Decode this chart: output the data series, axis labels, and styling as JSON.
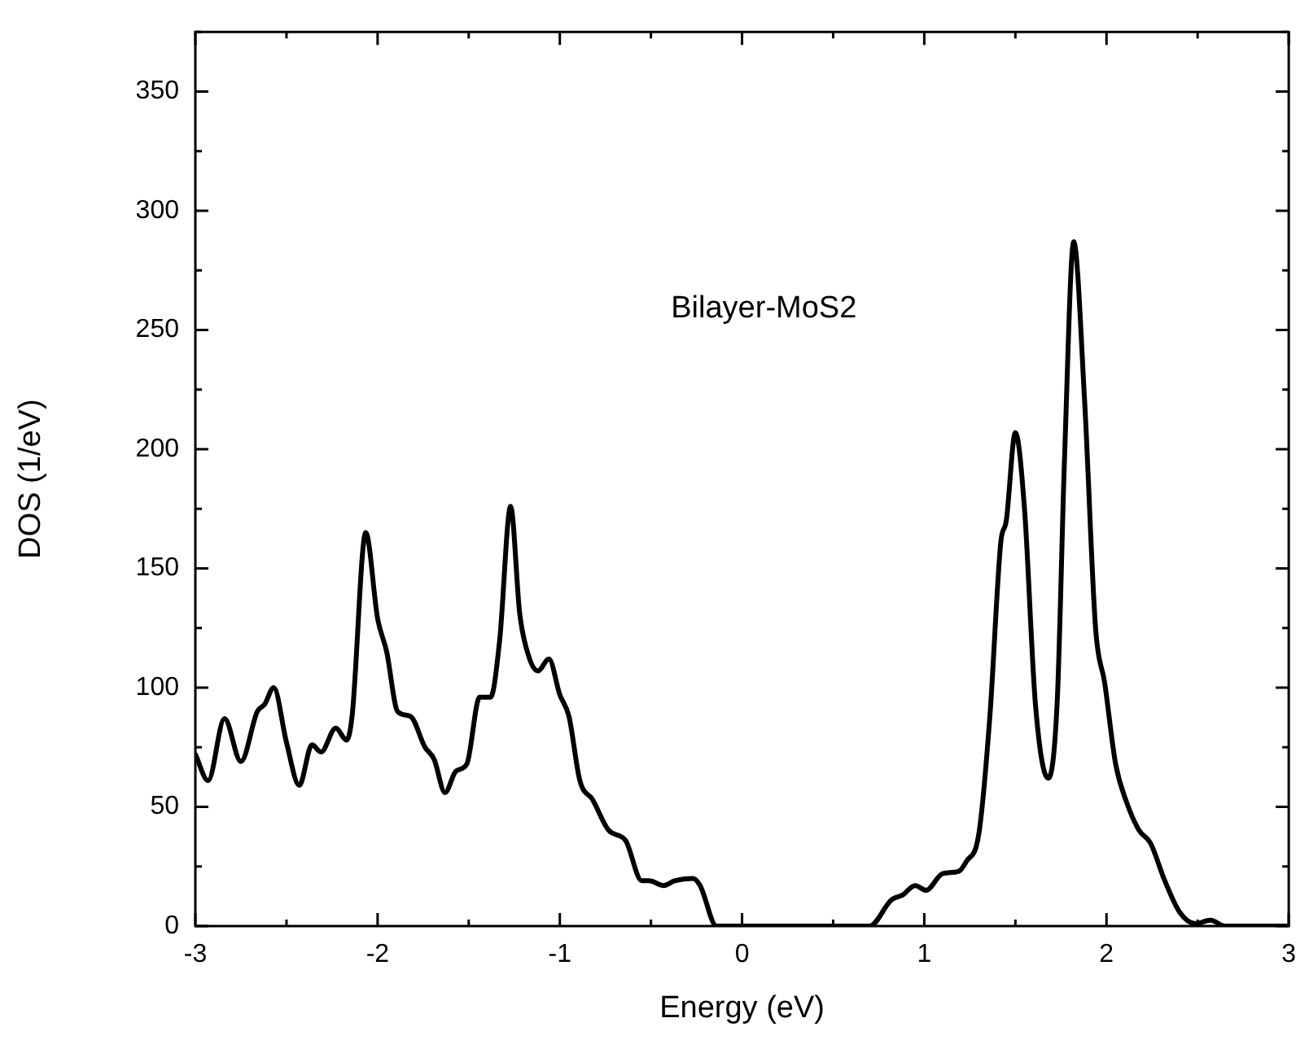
{
  "chart_data": {
    "type": "line",
    "xlabel": "Energy (eV)",
    "ylabel": "DOS (1/eV)",
    "annotations": [
      "Bilayer-MoS2"
    ],
    "xlim": [
      -3,
      3
    ],
    "xticks": [
      -3,
      -2,
      -1,
      0,
      1,
      2,
      3
    ],
    "ylim": [
      0,
      375
    ],
    "yticks": [
      0,
      50,
      100,
      150,
      200,
      250,
      300,
      350
    ],
    "marker": "none",
    "line_style": "solid",
    "series": [
      {
        "color": "#000000",
        "x": [
          -3,
          -2.93,
          -2.84,
          -2.75,
          -2.66,
          -2.62,
          -2.57,
          -2.5,
          -2.43,
          -2.36,
          -2.31,
          -2.23,
          -2.17,
          -2.14,
          -2.065,
          -2,
          -1.95,
          -1.89,
          -1.82,
          -1.74,
          -1.69,
          -1.63,
          -1.57,
          -1.51,
          -1.44,
          -1.38,
          -1.33,
          -1.27,
          -1.22,
          -1.17,
          -1.12,
          -1.06,
          -1,
          -0.95,
          -0.89,
          -0.82,
          -0.73,
          -0.64,
          -0.55,
          -0.51,
          -0.43,
          -0.37,
          -0.27,
          -0.23,
          -0.14,
          0.07,
          0.7,
          0.82,
          0.88,
          0.95,
          1.01,
          1.1,
          1.19,
          1.23,
          1.3,
          1.36,
          1.42,
          1.45,
          1.5,
          1.55,
          1.61,
          1.68,
          1.73,
          1.77,
          1.82,
          1.88,
          1.94,
          1.99,
          2.05,
          2.11,
          2.18,
          2.24,
          2.32,
          2.4,
          2.49,
          2.57,
          2.65,
          3
        ],
        "values": [
          72,
          61,
          87,
          69,
          90,
          93,
          100,
          77,
          59,
          76,
          73,
          83,
          78,
          88,
          165,
          129,
          115,
          90,
          88,
          75,
          70,
          56,
          65,
          68,
          96,
          96,
          120,
          176,
          131,
          113,
          107,
          112,
          97,
          88,
          61,
          53,
          40,
          36,
          19,
          19,
          17,
          19,
          20,
          17,
          0,
          0,
          0,
          11,
          13,
          17,
          15,
          22,
          23,
          27,
          39,
          88,
          161,
          170,
          207,
          175,
          93,
          62,
          95,
          197,
          287,
          220,
          125,
          102,
          68,
          52,
          40,
          35,
          19,
          6,
          1,
          2.5,
          0,
          0
        ]
      }
    ]
  }
}
